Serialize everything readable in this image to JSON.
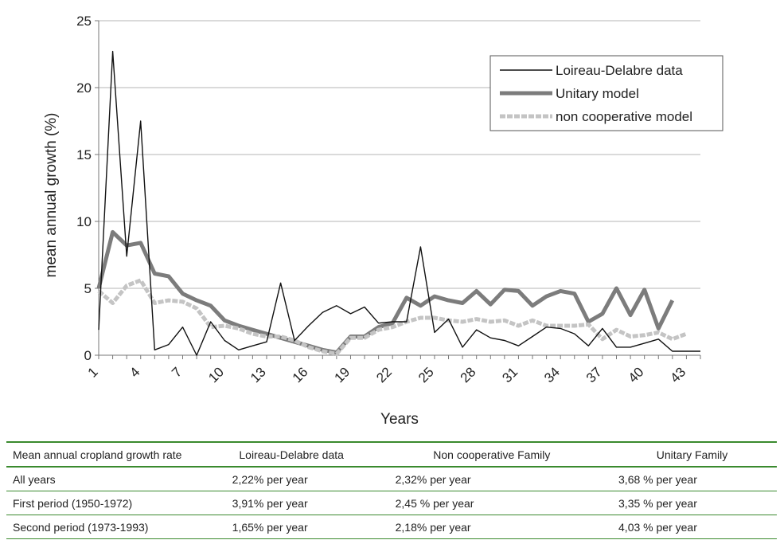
{
  "chart_data": {
    "type": "line",
    "xlabel": "Years",
    "ylabel": "mean annual growth (%)",
    "xlim": [
      1,
      44
    ],
    "ylim": [
      0,
      25
    ],
    "x_ticks": [
      1,
      4,
      7,
      10,
      13,
      16,
      19,
      22,
      25,
      28,
      31,
      34,
      37,
      40,
      43
    ],
    "y_ticks": [
      0,
      5,
      10,
      15,
      20,
      25
    ],
    "grid": "horizontal",
    "legend_position": "top-right",
    "series": [
      {
        "name": "Loireau-Delabre data",
        "color": "#111111",
        "x": [
          1,
          2,
          3,
          4,
          5,
          6,
          7,
          8,
          9,
          10,
          11,
          12,
          13,
          14,
          15,
          16,
          17,
          18,
          19,
          20,
          21,
          22,
          23,
          24,
          25,
          26,
          27,
          28,
          29,
          30,
          31,
          32,
          33,
          34,
          35,
          36,
          37,
          38,
          39,
          40,
          41,
          42,
          43,
          44
        ],
        "values": [
          1.9,
          22.7,
          7.4,
          17.5,
          0.4,
          0.8,
          2.1,
          0.0,
          2.5,
          1.1,
          0.4,
          0.7,
          1.0,
          5.4,
          1.1,
          2.2,
          3.2,
          3.7,
          3.1,
          3.6,
          2.4,
          2.5,
          2.5,
          8.1,
          1.7,
          2.7,
          0.6,
          1.9,
          1.3,
          1.1,
          0.7,
          1.4,
          2.1,
          2.0,
          1.6,
          0.7,
          2.0,
          0.6,
          0.6,
          0.9,
          1.2,
          0.3,
          0.3,
          0.3
        ]
      },
      {
        "name": "Unitary model",
        "color": "#7c7c7c",
        "x": [
          1,
          2,
          3,
          4,
          5,
          6,
          7,
          8,
          9,
          10,
          11,
          12,
          13,
          14,
          15,
          16,
          17,
          18,
          19,
          20,
          21,
          22,
          23,
          24,
          25,
          26,
          27,
          28,
          29,
          30,
          31,
          32,
          33,
          34,
          35,
          36,
          37,
          38,
          39,
          40,
          41,
          42,
          43
        ],
        "values": [
          5.0,
          9.2,
          8.2,
          8.4,
          6.1,
          5.9,
          4.6,
          4.1,
          3.7,
          2.6,
          2.2,
          1.9,
          1.6,
          1.3,
          1.0,
          0.7,
          0.4,
          0.2,
          1.4,
          1.4,
          2.1,
          2.4,
          4.3,
          3.7,
          4.4,
          4.1,
          3.9,
          4.8,
          3.8,
          4.9,
          4.8,
          3.7,
          4.4,
          4.8,
          4.6,
          2.5,
          3.1,
          5.0,
          3.0,
          4.9,
          2.0,
          4.1,
          null
        ]
      },
      {
        "name": "non cooperative model",
        "color": "#c4c4c4",
        "x": [
          1,
          2,
          3,
          4,
          5,
          6,
          7,
          8,
          9,
          10,
          11,
          12,
          13,
          14,
          15,
          16,
          17,
          18,
          19,
          20,
          21,
          22,
          23,
          24,
          25,
          26,
          27,
          28,
          29,
          30,
          31,
          32,
          33,
          34,
          35,
          36,
          37,
          38,
          39,
          40,
          41,
          42,
          43
        ],
        "values": [
          4.8,
          3.9,
          5.2,
          5.6,
          3.9,
          4.1,
          4.0,
          3.5,
          2.1,
          2.2,
          2.0,
          1.6,
          1.4,
          1.4,
          1.1,
          0.6,
          0.3,
          0.1,
          1.3,
          1.3,
          1.9,
          2.1,
          2.5,
          2.8,
          2.8,
          2.6,
          2.5,
          2.7,
          2.5,
          2.6,
          2.2,
          2.6,
          2.2,
          2.2,
          2.2,
          2.3,
          1.2,
          1.9,
          1.4,
          1.5,
          1.7,
          1.2,
          1.6
        ]
      }
    ]
  },
  "table": {
    "headers": [
      "Mean annual cropland growth rate",
      "Loireau-Delabre data",
      "Non cooperative Family",
      "Unitary Family"
    ],
    "rows": [
      [
        "All years",
        "2,22% per year",
        "2,32% per year",
        "3,68 % per year"
      ],
      [
        "First period (1950-1972)",
        "3,91% per year",
        "2,45 % per year",
        "3,35 % per year"
      ],
      [
        "Second period (1973-1993)",
        "1,65% per year",
        "2,18% per year",
        "4,03 % per year"
      ]
    ]
  }
}
